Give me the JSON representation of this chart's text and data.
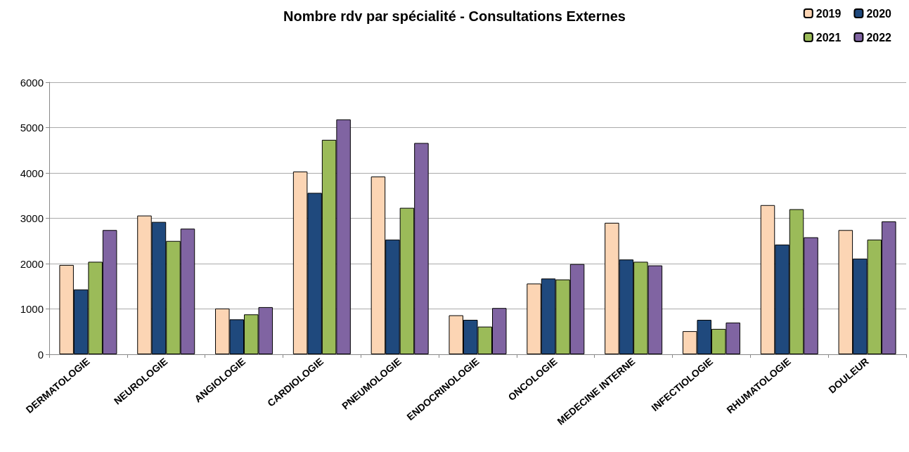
{
  "chart_data": {
    "type": "bar",
    "title": "Nombre rdv par spécialité - Consultations Externes",
    "categories": [
      "DERMATOLOGIE",
      "NEUROLOGIE",
      "ANGIOLOGIE",
      "CARDIOLOGIE",
      "PNEUMOLOGIE",
      "ENDOCRINOLOGIE",
      "ONCOLOGIE",
      "MEDECINE INTERNE",
      "INFECTIOLOGIE",
      "RHUMATOLOGIE",
      "DOULEUR"
    ],
    "series": [
      {
        "name": "2019",
        "color": "#fcd5b4",
        "values": [
          1970,
          3060,
          1010,
          4030,
          3920,
          860,
          1560,
          2900,
          510,
          3290,
          2740
        ]
      },
      {
        "name": "2020",
        "color": "#1f497d",
        "values": [
          1430,
          2920,
          770,
          3560,
          2530,
          760,
          1670,
          2090,
          760,
          2420,
          2110
        ]
      },
      {
        "name": "2021",
        "color": "#9bbb59",
        "values": [
          2040,
          2500,
          880,
          4730,
          3230,
          610,
          1650,
          2040,
          560,
          3200,
          2530
        ]
      },
      {
        "name": "2022",
        "color": "#8064a2",
        "values": [
          2740,
          2770,
          1040,
          5180,
          4660,
          1020,
          1990,
          1960,
          700,
          2580,
          2930
        ]
      }
    ],
    "ylim": [
      0,
      6000
    ],
    "yticks": [
      0,
      1000,
      2000,
      3000,
      4000,
      5000,
      6000
    ],
    "grid": "y",
    "legend": "top right"
  }
}
